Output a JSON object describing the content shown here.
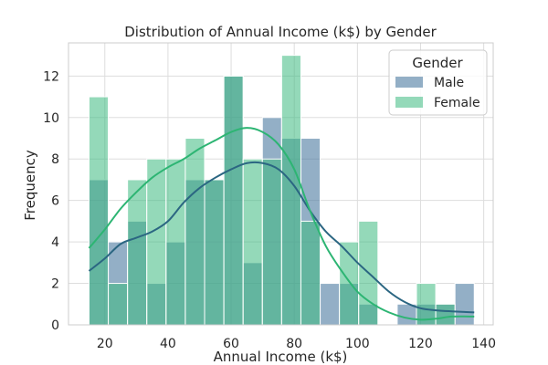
{
  "chart_data": {
    "type": "histogram",
    "title": "Distribution of Annual Income (k$) by Gender",
    "xlabel": "Annual Income (k$)",
    "ylabel": "Frequency",
    "xlim": [
      8.5,
      143
    ],
    "ylim": [
      0,
      13.6
    ],
    "x_ticks": [
      20,
      40,
      60,
      80,
      100,
      120,
      140
    ],
    "y_ticks": [
      0,
      2,
      4,
      6,
      8,
      10,
      12
    ],
    "grid": true,
    "bin_edges": [
      15,
      21.1,
      27.2,
      33.3,
      39.4,
      45.5,
      51.6,
      57.7,
      63.8,
      69.9,
      76.0,
      82.1,
      88.2,
      94.3,
      100.4,
      106.5,
      112.6,
      118.7,
      124.8,
      130.9,
      137
    ],
    "legend": {
      "title": "Gender",
      "position": "top-right"
    },
    "series": [
      {
        "name": "Male",
        "color": "#4b7aa0",
        "counts": [
          7,
          4,
          5,
          2,
          4,
          7,
          7,
          12,
          3,
          10,
          9,
          9,
          2,
          2,
          1,
          0,
          1,
          1,
          1,
          2
        ],
        "kde": [
          [
            15,
            2.6
          ],
          [
            20,
            3.2
          ],
          [
            25,
            3.9
          ],
          [
            30,
            4.2
          ],
          [
            35,
            4.5
          ],
          [
            40,
            5.0
          ],
          [
            45,
            5.9
          ],
          [
            50,
            6.6
          ],
          [
            55,
            7.1
          ],
          [
            60,
            7.5
          ],
          [
            65,
            7.8
          ],
          [
            70,
            7.8
          ],
          [
            75,
            7.5
          ],
          [
            80,
            6.7
          ],
          [
            85,
            5.5
          ],
          [
            90,
            4.5
          ],
          [
            95,
            3.8
          ],
          [
            100,
            3.0
          ],
          [
            105,
            2.3
          ],
          [
            110,
            1.6
          ],
          [
            115,
            1.1
          ],
          [
            120,
            0.8
          ],
          [
            125,
            0.7
          ],
          [
            130,
            0.65
          ],
          [
            137,
            0.6
          ]
        ]
      },
      {
        "name": "Female",
        "color": "#3cba80",
        "counts": [
          11,
          2,
          7,
          8,
          8,
          9,
          7,
          12,
          8,
          8,
          13,
          5,
          0,
          4,
          5,
          0,
          0,
          2,
          1,
          0
        ],
        "kde": [
          [
            15,
            3.7
          ],
          [
            20,
            4.6
          ],
          [
            25,
            5.6
          ],
          [
            30,
            6.4
          ],
          [
            35,
            7.1
          ],
          [
            40,
            7.6
          ],
          [
            45,
            8.0
          ],
          [
            50,
            8.5
          ],
          [
            55,
            8.9
          ],
          [
            60,
            9.3
          ],
          [
            65,
            9.5
          ],
          [
            70,
            9.3
          ],
          [
            75,
            8.7
          ],
          [
            80,
            7.5
          ],
          [
            85,
            5.5
          ],
          [
            90,
            3.8
          ],
          [
            95,
            2.6
          ],
          [
            100,
            1.6
          ],
          [
            105,
            1.0
          ],
          [
            110,
            0.6
          ],
          [
            115,
            0.35
          ],
          [
            120,
            0.25
          ],
          [
            125,
            0.3
          ],
          [
            130,
            0.4
          ],
          [
            137,
            0.4
          ]
        ]
      }
    ]
  }
}
